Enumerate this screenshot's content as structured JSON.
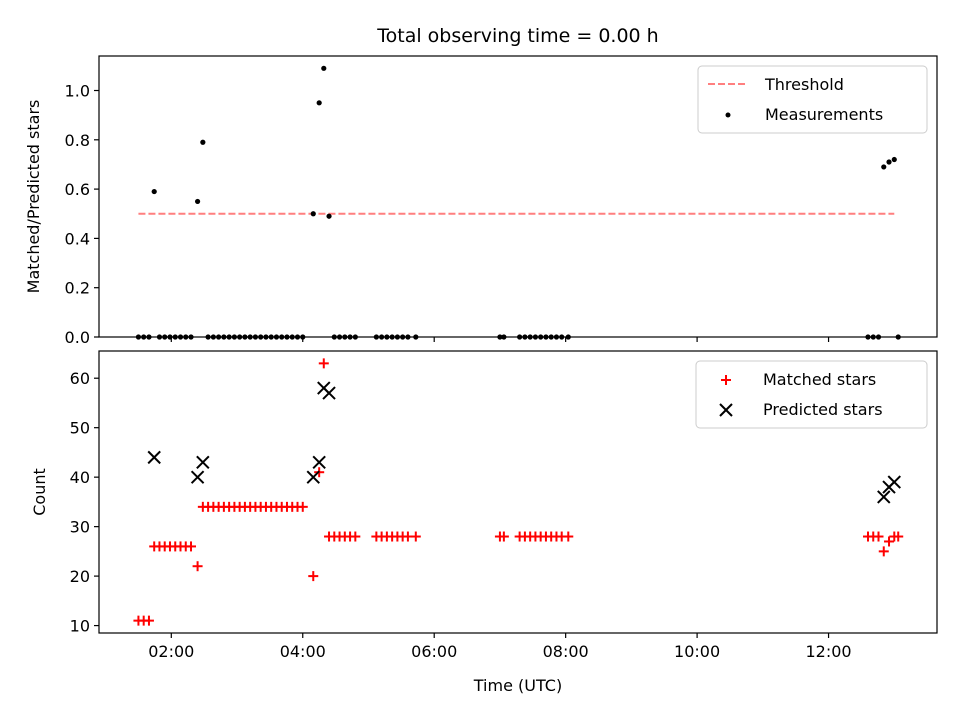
{
  "chart_data": [
    {
      "type": "scatter",
      "title": "Total observing time = 0.00 h",
      "xlabel": "",
      "ylabel": "Matched/Predicted stars",
      "xlim": [
        0.9,
        13.65
      ],
      "ylim": [
        0,
        1.14
      ],
      "yticks": [
        "0.0",
        "0.2",
        "0.4",
        "0.6",
        "0.8",
        "1.0"
      ],
      "yticks_values": [
        0,
        0.2,
        0.4,
        0.6,
        0.8,
        1.0
      ],
      "xticks_values": [
        2,
        4,
        6,
        8,
        10,
        12
      ],
      "threshold": {
        "name": "Threshold",
        "x": [
          1.5,
          13.0
        ],
        "y": 0.5,
        "color": "#ff7f7f"
      },
      "series": [
        {
          "name": "Measurements",
          "color": "#000000",
          "x": [
            1.5,
            1.58,
            1.66,
            1.74,
            1.82,
            1.9,
            1.98,
            2.06,
            2.14,
            2.22,
            2.3,
            2.4,
            2.48,
            2.56,
            2.64,
            2.72,
            2.8,
            2.88,
            2.96,
            3.04,
            3.12,
            3.2,
            3.28,
            3.36,
            3.44,
            3.52,
            3.6,
            3.68,
            3.76,
            3.84,
            3.92,
            4.0,
            4.16,
            4.25,
            4.32,
            4.4,
            4.48,
            4.56,
            4.64,
            4.72,
            4.8,
            5.12,
            5.2,
            5.28,
            5.36,
            5.44,
            5.52,
            5.6,
            5.72,
            7.0,
            7.06,
            7.3,
            7.38,
            7.46,
            7.54,
            7.62,
            7.7,
            7.78,
            7.86,
            7.94,
            8.04,
            12.6,
            12.68,
            12.76,
            12.84,
            12.92,
            13.0,
            13.06
          ],
          "y": [
            0,
            0,
            0,
            0.59,
            0,
            0,
            0,
            0,
            0,
            0,
            0,
            0.55,
            0.79,
            0,
            0,
            0,
            0,
            0,
            0,
            0,
            0,
            0,
            0,
            0,
            0,
            0,
            0,
            0,
            0,
            0,
            0,
            0,
            0.5,
            0.95,
            1.09,
            0.49,
            0,
            0,
            0,
            0,
            0,
            0,
            0,
            0,
            0,
            0,
            0,
            0,
            0,
            0,
            0,
            0,
            0,
            0,
            0,
            0,
            0,
            0,
            0,
            0,
            0,
            0,
            0,
            0,
            0.69,
            0.71,
            0.72,
            0
          ]
        }
      ],
      "legend": "top-right"
    },
    {
      "type": "scatter",
      "title": "",
      "xlabel": "Time (UTC)",
      "ylabel": "Count",
      "xlim": [
        0.9,
        13.65
      ],
      "ylim": [
        8.5,
        65.5
      ],
      "yticks": [
        "10",
        "20",
        "30",
        "40",
        "50",
        "60"
      ],
      "yticks_values": [
        10,
        20,
        30,
        40,
        50,
        60
      ],
      "xticks": [
        "02:00",
        "04:00",
        "06:00",
        "08:00",
        "10:00",
        "12:00"
      ],
      "xticks_values": [
        2,
        4,
        6,
        8,
        10,
        12
      ],
      "series": [
        {
          "name": "Matched stars",
          "marker": "plus",
          "color": "#ff0000",
          "x": [
            1.5,
            1.58,
            1.66,
            1.74,
            1.82,
            1.9,
            1.98,
            2.06,
            2.14,
            2.22,
            2.3,
            2.4,
            2.48,
            2.56,
            2.64,
            2.72,
            2.8,
            2.88,
            2.96,
            3.04,
            3.12,
            3.2,
            3.28,
            3.36,
            3.44,
            3.52,
            3.6,
            3.68,
            3.76,
            3.84,
            3.92,
            4.0,
            4.16,
            4.25,
            4.32,
            4.4,
            4.48,
            4.56,
            4.64,
            4.72,
            4.8,
            5.12,
            5.2,
            5.28,
            5.36,
            5.44,
            5.52,
            5.6,
            5.72,
            7.0,
            7.06,
            7.3,
            7.38,
            7.46,
            7.54,
            7.62,
            7.7,
            7.78,
            7.86,
            7.94,
            8.04,
            12.6,
            12.68,
            12.76,
            12.84,
            12.92,
            13.0,
            13.06
          ],
          "y": [
            11,
            11,
            11,
            26,
            26,
            26,
            26,
            26,
            26,
            26,
            26,
            22,
            34,
            34,
            34,
            34,
            34,
            34,
            34,
            34,
            34,
            34,
            34,
            34,
            34,
            34,
            34,
            34,
            34,
            34,
            34,
            34,
            20,
            41,
            63,
            28,
            28,
            28,
            28,
            28,
            28,
            28,
            28,
            28,
            28,
            28,
            28,
            28,
            28,
            28,
            28,
            28,
            28,
            28,
            28,
            28,
            28,
            28,
            28,
            28,
            28,
            28,
            28,
            28,
            25,
            27,
            28,
            28
          ]
        },
        {
          "name": "Predicted stars",
          "marker": "x",
          "color": "#000000",
          "x": [
            1.74,
            2.4,
            2.48,
            4.16,
            4.25,
            4.32,
            4.4,
            12.84,
            12.92,
            13.0
          ],
          "y": [
            44,
            40,
            43,
            40,
            43,
            58,
            57,
            36,
            38,
            39
          ]
        }
      ],
      "legend": "top-right"
    }
  ]
}
